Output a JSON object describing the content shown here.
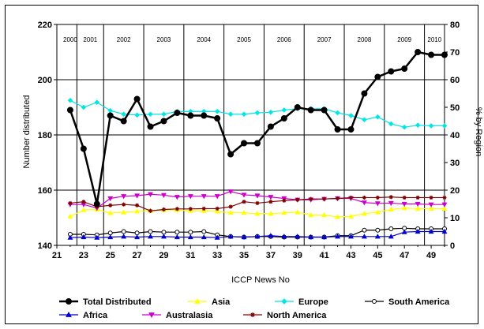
{
  "chart_data": {
    "type": "line",
    "xlabel": "ICCP News No",
    "ylabel_left": "Number distributed",
    "ylabel_right": "% by Region",
    "xlim": [
      21,
      50
    ],
    "ylim_left": [
      140,
      220
    ],
    "ylim_right": [
      0,
      80
    ],
    "x_ticks": [
      "21",
      "23",
      "25",
      "27",
      "29",
      "31",
      "33",
      "35",
      "37",
      "39",
      "41",
      "43",
      "45",
      "47",
      "49"
    ],
    "y_ticks_left": [
      "140",
      "160",
      "180",
      "200",
      "220"
    ],
    "y_ticks_right": [
      "0",
      "10",
      "20",
      "30",
      "40",
      "50",
      "60",
      "70",
      "80"
    ],
    "grid": true,
    "legend_position": "bottom",
    "x": [
      22,
      23,
      24,
      25,
      26,
      27,
      28,
      29,
      30,
      31,
      32,
      33,
      34,
      35,
      36,
      37,
      38,
      39,
      40,
      41,
      42,
      43,
      44,
      45,
      46,
      47,
      48,
      49,
      50
    ],
    "years": [
      {
        "label": "2000",
        "start": 21.5,
        "end": 22.5
      },
      {
        "label": "2001",
        "start": 22.5,
        "end": 24.5
      },
      {
        "label": "2002",
        "start": 24.5,
        "end": 27.5
      },
      {
        "label": "2003",
        "start": 27.5,
        "end": 30.5
      },
      {
        "label": "2004",
        "start": 30.5,
        "end": 33.5
      },
      {
        "label": "2005",
        "start": 33.5,
        "end": 36.5
      },
      {
        "label": "2006",
        "start": 36.5,
        "end": 39.5
      },
      {
        "label": "2007",
        "start": 39.5,
        "end": 42.5
      },
      {
        "label": "2008",
        "start": 42.5,
        "end": 45.5
      },
      {
        "label": "2009",
        "start": 45.5,
        "end": 48.5
      },
      {
        "label": "2010",
        "start": 48.5,
        "end": 50
      }
    ],
    "series": [
      {
        "name": "Total Distributed",
        "axis": "left",
        "color": "#000000",
        "marker": "circle-filled",
        "values": [
          189,
          175,
          155,
          187,
          185,
          193,
          183,
          185,
          188,
          187,
          187,
          186,
          173,
          177,
          177,
          183,
          186,
          190,
          189,
          189,
          182,
          182,
          195,
          201,
          203,
          204,
          210,
          209,
          209
        ]
      },
      {
        "name": "Asia",
        "axis": "right",
        "color": "#ffff00",
        "marker": "triangle-up",
        "values": [
          10.5,
          12.8,
          13,
          11.7,
          12,
          12.3,
          12.5,
          12.8,
          12.8,
          12.5,
          12.5,
          12.3,
          11.8,
          11.8,
          11.5,
          11.5,
          11.8,
          12,
          11,
          11,
          10.3,
          10.5,
          11.5,
          12,
          13,
          13.5,
          13.3,
          13.3,
          13.3
        ]
      },
      {
        "name": "Europe",
        "axis": "right",
        "color": "#00e5e5",
        "marker": "diamond",
        "values": [
          52.5,
          50,
          51.8,
          48.8,
          47.5,
          47.2,
          47.5,
          47.5,
          48.5,
          48.5,
          48.5,
          48.5,
          47.5,
          47.5,
          48,
          48.2,
          49,
          49.5,
          49.5,
          49.5,
          48,
          47,
          45.5,
          46.5,
          44,
          42.8,
          43.5,
          43.3,
          43.3
        ]
      },
      {
        "name": "South America",
        "axis": "right",
        "color": "#000000",
        "marker": "circle-open",
        "values": [
          4,
          4,
          3.8,
          4.5,
          5,
          4.5,
          5,
          4.8,
          4.8,
          4.8,
          5,
          3.8,
          3.2,
          3,
          3.2,
          3.2,
          3,
          3,
          3,
          3,
          3.5,
          3.5,
          5.5,
          5.5,
          6,
          6.2,
          6,
          6,
          6
        ]
      },
      {
        "name": "Africa",
        "axis": "right",
        "color": "#0000cc",
        "marker": "triangle-up",
        "values": [
          2.8,
          3,
          2.8,
          3,
          3.2,
          3,
          3.2,
          3.2,
          3,
          3,
          3,
          2.8,
          3.2,
          3,
          3.2,
          3.5,
          3.2,
          3.2,
          3,
          3,
          3.2,
          3.2,
          3.2,
          3.2,
          3.2,
          4.8,
          5,
          5,
          5
        ]
      },
      {
        "name": "Australasia",
        "axis": "right",
        "color": "#cc00cc",
        "marker": "triangle-down",
        "values": [
          14.8,
          14.8,
          13.5,
          17,
          17.8,
          18,
          18.5,
          18.2,
          17.5,
          17.8,
          17.8,
          17.8,
          19.5,
          18.3,
          18,
          17.5,
          17,
          16.5,
          16.5,
          16.8,
          17,
          17,
          15.5,
          15.2,
          15.3,
          15,
          15,
          14.8,
          14.8
        ]
      },
      {
        "name": "North America",
        "axis": "right",
        "color": "#800000",
        "marker": "star",
        "values": [
          15.3,
          15.8,
          14,
          14.5,
          14.8,
          14.5,
          12.5,
          13,
          13.2,
          13.2,
          13.3,
          13.3,
          14,
          15.8,
          15.3,
          15.8,
          16.2,
          16.5,
          16.8,
          16.8,
          17,
          17.3,
          17.3,
          17.3,
          17.5,
          17.3,
          17.3,
          17.3,
          17.3
        ]
      }
    ]
  }
}
